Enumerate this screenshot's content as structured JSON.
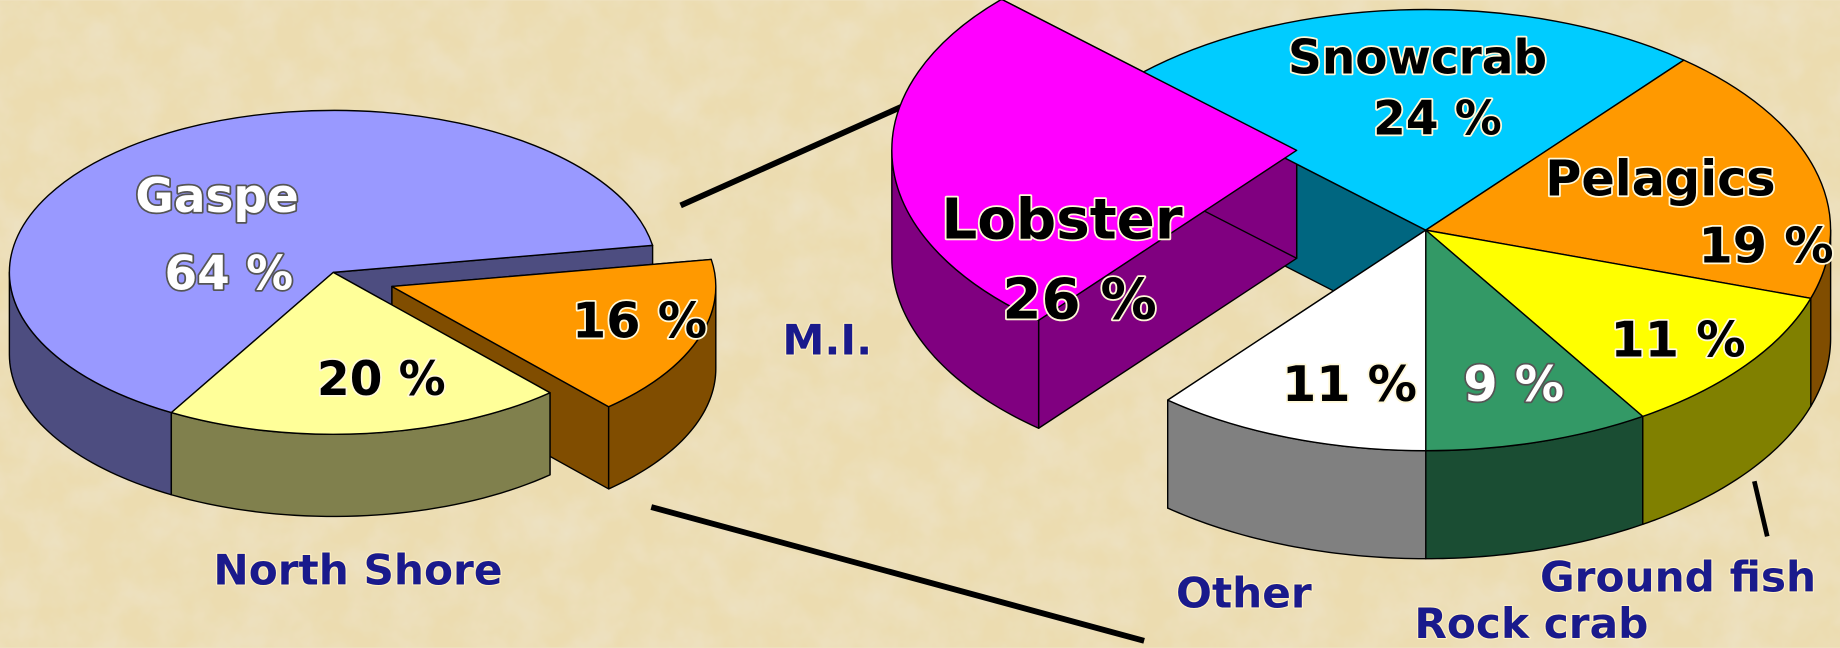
{
  "chart_data": [
    {
      "type": "pie",
      "categories": [
        "Gaspe",
        "M.I.",
        "North Shore"
      ],
      "values": [
        64,
        16,
        20
      ],
      "value_labels": [
        "64 %",
        "16 %",
        "20 %"
      ],
      "colors": [
        "#9999ff",
        "#ff9900",
        "#ffff99"
      ]
    },
    {
      "type": "pie",
      "categories": [
        "Snowcrab",
        "Pelagics",
        "Ground fish",
        "Rock crab",
        "Other",
        "Lobster"
      ],
      "values": [
        24,
        19,
        11,
        9,
        11,
        26
      ],
      "value_labels": [
        "24 %",
        "19 %",
        "11 %",
        "9 %",
        "11 %",
        "26 %"
      ],
      "colors": [
        "#00ccff",
        "#ff9900",
        "#ffff00",
        "#339966",
        "#ffffff",
        "#ff00ff"
      ]
    }
  ]
}
